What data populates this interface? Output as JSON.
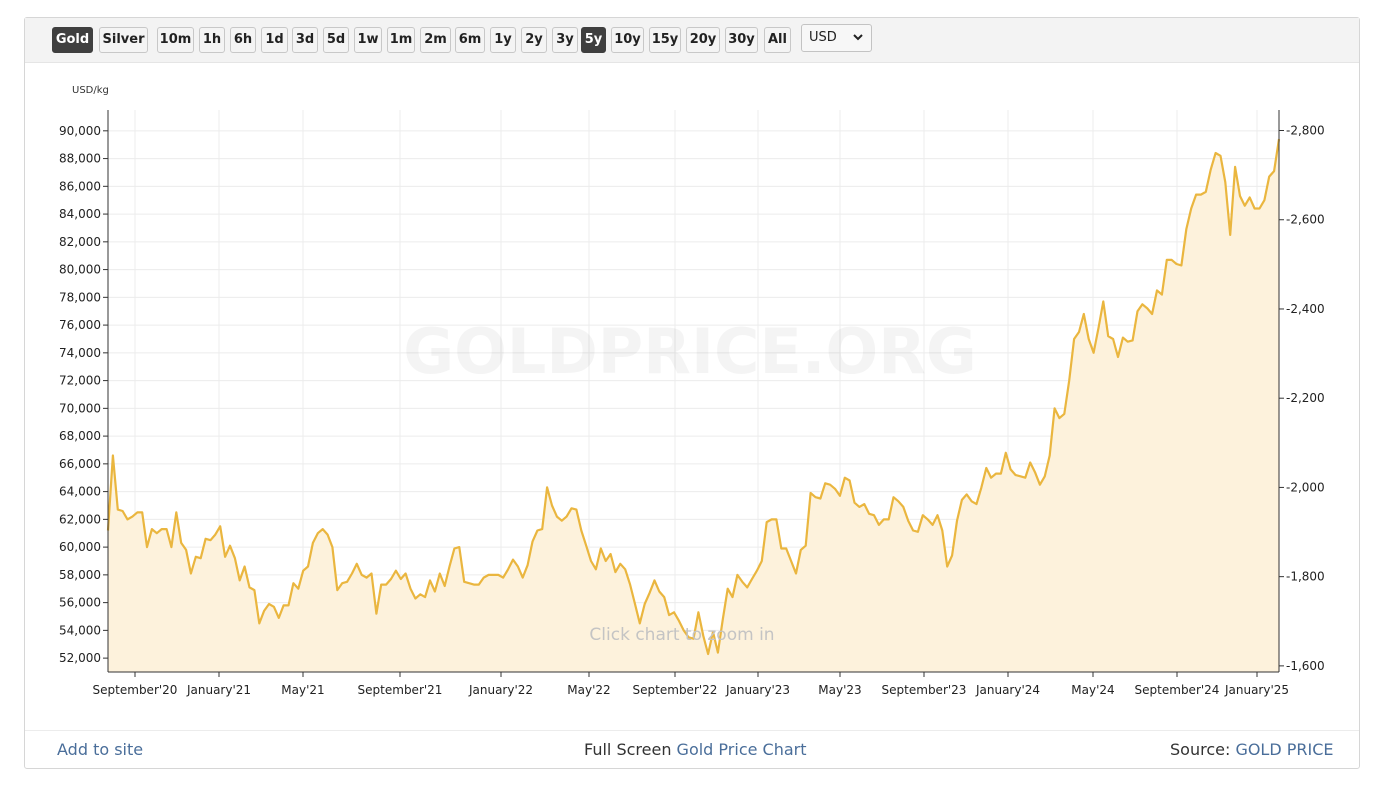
{
  "toolbar": {
    "metals": [
      {
        "label": "Gold",
        "active": true
      },
      {
        "label": "Silver",
        "active": false
      }
    ],
    "ranges": [
      {
        "label": "10m",
        "active": false
      },
      {
        "label": "1h",
        "active": false
      },
      {
        "label": "6h",
        "active": false
      },
      {
        "label": "1d",
        "active": false
      },
      {
        "label": "3d",
        "active": false
      },
      {
        "label": "5d",
        "active": false
      },
      {
        "label": "1w",
        "active": false
      },
      {
        "label": "1m",
        "active": false
      },
      {
        "label": "2m",
        "active": false
      },
      {
        "label": "6m",
        "active": false
      },
      {
        "label": "1y",
        "active": false
      },
      {
        "label": "2y",
        "active": false
      },
      {
        "label": "3y",
        "active": false
      },
      {
        "label": "5y",
        "active": true
      },
      {
        "label": "10y",
        "active": false
      },
      {
        "label": "15y",
        "active": false
      },
      {
        "label": "20y",
        "active": false
      },
      {
        "label": "30y",
        "active": false
      },
      {
        "label": "All",
        "active": false
      }
    ],
    "currency": "USD"
  },
  "watermark": "GOLDPRICE.ORG",
  "hint": "Click chart to zoom in",
  "footer": {
    "add_to_site": "Add to site",
    "fullscreen_prefix": "Full Screen ",
    "fullscreen_link": "Gold Price Chart",
    "source_prefix": "Source: ",
    "source_link": "GOLD PRICE"
  },
  "colors": {
    "line": "#eab63f",
    "fill": "#fdf2dc",
    "active_button": "#3f3f3f",
    "link": "#4a6e9a"
  },
  "chart_data": {
    "type": "area",
    "ylabel": "USD/kg",
    "ylim": [
      51000,
      91500
    ],
    "y_ticks": [
      "52,000",
      "54,000",
      "56,000",
      "58,000",
      "60,000",
      "62,000",
      "64,000",
      "66,000",
      "68,000",
      "70,000",
      "72,000",
      "74,000",
      "76,000",
      "78,000",
      "80,000",
      "82,000",
      "84,000",
      "86,000",
      "88,000",
      "90,000"
    ],
    "y2_ticks": [
      "1,600",
      "1,800",
      "2,000",
      "2,200",
      "2,400",
      "2,600",
      "2,800"
    ],
    "x_ticks": [
      "September'20",
      "January'21",
      "May'21",
      "September'21",
      "January'22",
      "May'22",
      "September'22",
      "January'23",
      "May'23",
      "September'23",
      "January'24",
      "May'24",
      "September'24",
      "January'25"
    ],
    "grid": true,
    "series": [
      {
        "values": [
          61200,
          66600,
          62700,
          62600,
          62000,
          62200,
          62500,
          62500,
          60000,
          61300,
          61000,
          61300,
          61300,
          60000,
          62500,
          60300,
          59800,
          58100,
          59300,
          59200,
          60600,
          60500,
          60900,
          61500,
          59300,
          60100,
          59200,
          57600,
          58600,
          57100,
          56900,
          54500,
          55400,
          55900,
          55700,
          54900,
          55800,
          55800,
          57400,
          57000,
          58300,
          58600,
          60300,
          61000,
          61300,
          60900,
          60000,
          56900,
          57400,
          57500,
          58100,
          58800,
          58000,
          57800,
          58100,
          55200,
          57300,
          57300,
          57700,
          58300,
          57700,
          58100,
          57000,
          56300,
          56600,
          56400,
          57600,
          56800,
          58100,
          57200,
          58600,
          59900,
          60000,
          57500,
          57400,
          57300,
          57300,
          57800,
          58000,
          58000,
          58000,
          57800,
          58400,
          59100,
          58600,
          57800,
          58700,
          60400,
          61200,
          61300,
          64300,
          63000,
          62200,
          61900,
          62200,
          62800,
          62700,
          61200,
          60100,
          59000,
          58400,
          59900,
          59000,
          59500,
          58200,
          58800,
          58400,
          57300,
          55900,
          54500,
          55900,
          56700,
          57600,
          56800,
          56400,
          55100,
          55300,
          54700,
          54000,
          53500,
          53400,
          55300,
          53600,
          52300,
          53900,
          52400,
          54800,
          57000,
          56400,
          58000,
          57500,
          57100,
          57700,
          58300,
          59000,
          61800,
          62000,
          62000,
          59900,
          59900,
          59000,
          58100,
          59800,
          60100,
          63900,
          63600,
          63500,
          64600,
          64500,
          64200,
          63700,
          65000,
          64800,
          63200,
          62900,
          63100,
          62400,
          62300,
          61600,
          62000,
          62000,
          63600,
          63300,
          62900,
          61900,
          61200,
          61100,
          62300,
          62000,
          61600,
          62300,
          61200,
          58600,
          59400,
          61900,
          63400,
          63800,
          63300,
          63100,
          64300,
          65700,
          65000,
          65300,
          65300,
          66800,
          65600,
          65200,
          65100,
          65000,
          66100,
          65400,
          64500,
          65100,
          66600,
          70000,
          69300,
          69600,
          72000,
          75000,
          75500,
          76800,
          75000,
          74000,
          75800,
          77700,
          75200,
          75000,
          73700,
          75100,
          74800,
          74900,
          77000,
          77500,
          77200,
          76800,
          78500,
          78200,
          80700,
          80700,
          80400,
          80300,
          82900,
          84400,
          85400,
          85400,
          85600,
          87200,
          88400,
          88200,
          86300,
          82500,
          87400,
          85300,
          84600,
          85200,
          84400,
          84400,
          85000,
          86700,
          87100,
          89400
        ]
      }
    ]
  }
}
